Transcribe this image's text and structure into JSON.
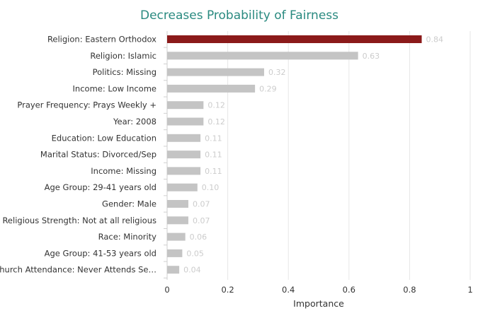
{
  "chart_data": {
    "type": "bar",
    "orientation": "horizontal",
    "title": "Decreases Probability of Fairness",
    "xlabel": "Importance",
    "ylabel": "",
    "xlim": [
      0,
      1
    ],
    "x_ticks": [
      "0",
      "0.2",
      "0.4",
      "0.6",
      "0.8",
      "1"
    ],
    "x_tick_values": [
      0,
      0.2,
      0.4,
      0.6,
      0.8,
      1
    ],
    "grid": true,
    "legend": "none",
    "categories": [
      "Religion: Eastern Orthodox",
      "Religion: Islamic",
      "Politics: Missing",
      "Income: Low Income",
      "Prayer Frequency: Prays Weekly +",
      "Year: 2008",
      "Education: Low Education",
      "Marital Status: Divorced/Sep",
      "Income: Missing",
      "Age Group: 29-41 years old",
      "Gender: Male",
      "Religious Strength: Not at all religious",
      "Race: Minority",
      "Age Group: 41-53 years old",
      "Church Attendance: Never Attends Se…"
    ],
    "values": [
      0.84,
      0.63,
      0.32,
      0.29,
      0.12,
      0.12,
      0.11,
      0.11,
      0.11,
      0.1,
      0.07,
      0.07,
      0.06,
      0.05,
      0.04
    ],
    "value_labels": [
      "0.84",
      "0.63",
      "0.32",
      "0.29",
      "0.12",
      "0.12",
      "0.11",
      "0.11",
      "0.11",
      "0.10",
      "0.07",
      "0.07",
      "0.06",
      "0.05",
      "0.04"
    ],
    "colors": {
      "highlight": "#8b1a1a",
      "bar": "#c4c4c4",
      "title": "#2a8a80",
      "grid": "#e6e6e6",
      "data_label": "#cccccc"
    }
  }
}
